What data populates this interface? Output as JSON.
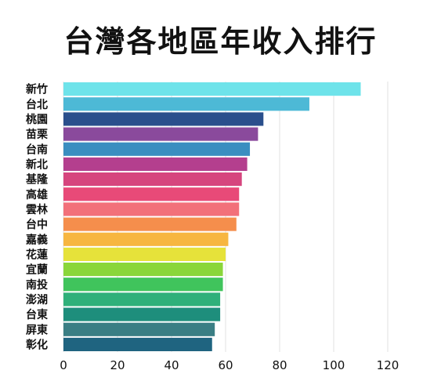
{
  "chart_data": {
    "type": "bar",
    "orientation": "horizontal",
    "title": "台灣各地區年收入排行",
    "categories": [
      "新竹",
      "台北",
      "桃園",
      "苗栗",
      "台南",
      "新北",
      "基隆",
      "高雄",
      "雲林",
      "台中",
      "嘉義",
      "花蓮",
      "宜蘭",
      "南投",
      "澎湖",
      "台東",
      "屏東",
      "彰化"
    ],
    "values": [
      110,
      91,
      74,
      72,
      69,
      68,
      66,
      65,
      65,
      64,
      61,
      60,
      59,
      59,
      58,
      58,
      56,
      55
    ],
    "colors": [
      "#6ee3ea",
      "#4db9d6",
      "#2a4f8c",
      "#8a4a9c",
      "#3a8ec0",
      "#b43f8e",
      "#d6457e",
      "#e84a78",
      "#f2707a",
      "#f58e4c",
      "#f7b640",
      "#e6e23a",
      "#8ad63a",
      "#40c45c",
      "#2fb07a",
      "#1e8e7c",
      "#3a7e84",
      "#1f6480"
    ],
    "xlabel": "",
    "ylabel": "",
    "xlim": [
      0,
      120
    ],
    "xticks": [
      0,
      20,
      40,
      60,
      80,
      100,
      120
    ],
    "grid": true,
    "legend": "none"
  }
}
